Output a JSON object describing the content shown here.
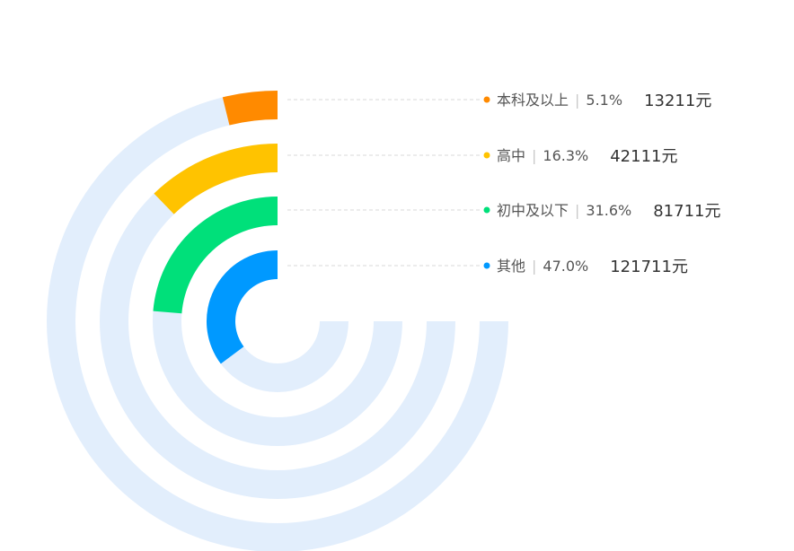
{
  "chart_data": {
    "type": "radial-bar",
    "unit": "元",
    "series": [
      {
        "category": "本科及以上",
        "percent_label": "5.1%",
        "percent": 5.1,
        "value_label": "13211元",
        "value": 13211,
        "color": "#FF8A00"
      },
      {
        "category": "高中",
        "percent_label": "16.3%",
        "percent": 16.3,
        "value_label": "42111元",
        "value": 42111,
        "color": "#FFC300"
      },
      {
        "category": "初中及以下",
        "percent_label": "31.6%",
        "percent": 31.6,
        "value_label": "81711元",
        "value": 81711,
        "color": "#00E07A"
      },
      {
        "category": "其他",
        "percent_label": "47.0%",
        "percent": 47.0,
        "value_label": "121711元",
        "value": 121711,
        "color": "#0099FF"
      }
    ],
    "track_color": "#E2EEFC",
    "connector_color": "#D9D9D9",
    "separator": "|"
  }
}
